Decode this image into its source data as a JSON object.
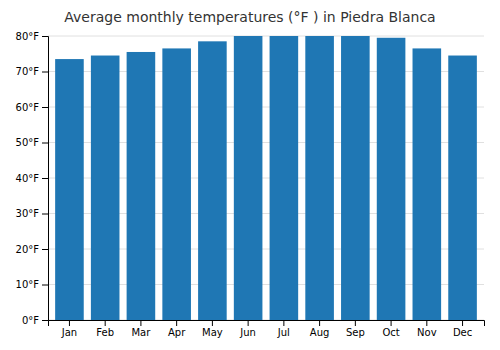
{
  "chart_data": {
    "type": "bar",
    "title": "Average monthly temperatures (°F ) in Piedra Blanca",
    "categories": [
      "Jan",
      "Feb",
      "Mar",
      "Apr",
      "May",
      "Jun",
      "Jul",
      "Aug",
      "Sep",
      "Oct",
      "Nov",
      "Dec"
    ],
    "values": [
      73.5,
      74.5,
      75.5,
      76.5,
      78.5,
      80.0,
      80.0,
      80.0,
      80.0,
      79.5,
      76.5,
      74.5
    ],
    "ylim": [
      0,
      80
    ],
    "yticks": [
      {
        "value": 0,
        "label": "0°F"
      },
      {
        "value": 10,
        "label": "10°F"
      },
      {
        "value": 20,
        "label": "20°F"
      },
      {
        "value": 30,
        "label": "30°F"
      },
      {
        "value": 40,
        "label": "40°F"
      },
      {
        "value": 50,
        "label": "50°F"
      },
      {
        "value": 60,
        "label": "60°F"
      },
      {
        "value": 70,
        "label": "70°F"
      },
      {
        "value": 80,
        "label": "80°F"
      }
    ],
    "grid": true
  }
}
